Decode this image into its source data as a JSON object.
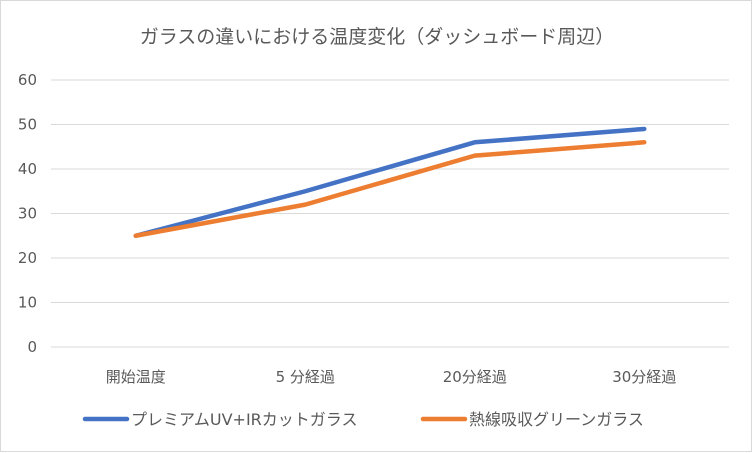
{
  "chart_data": {
    "type": "line",
    "title": "ガラスの違いにおける温度変化（ダッシュボード周辺）",
    "categories": [
      "開始温度",
      "5 分経過",
      "20分経過",
      "30分経過"
    ],
    "series": [
      {
        "name": "プレミアムUV+IRカットガラス",
        "color": "#4472c4",
        "values": [
          25,
          35,
          46,
          49
        ]
      },
      {
        "name": "熱線吸収グリーンガラス",
        "color": "#ed7d31",
        "values": [
          25,
          32,
          43,
          46
        ]
      }
    ],
    "ylim": [
      0,
      60
    ],
    "yticks": [
      0,
      10,
      20,
      30,
      40,
      50,
      60
    ],
    "grid": true,
    "legend_position": "bottom"
  }
}
